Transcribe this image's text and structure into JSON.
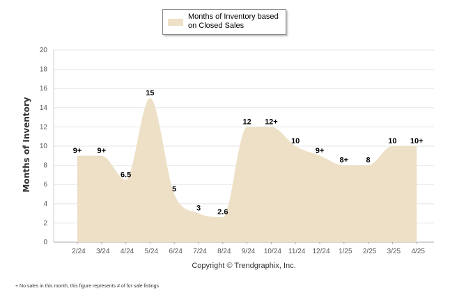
{
  "chart_data": {
    "type": "area",
    "categories": [
      "2/24",
      "3/24",
      "4/24",
      "5/24",
      "6/24",
      "7/24",
      "8/24",
      "9/24",
      "10/24",
      "11/24",
      "12/24",
      "1/25",
      "2/25",
      "3/25",
      "4/25"
    ],
    "series": [
      {
        "name": "Months of Inventory based on Closed Sales",
        "values": [
          9,
          9,
          6.5,
          15,
          5,
          3,
          2.6,
          12,
          12,
          10,
          9,
          8,
          8,
          10,
          10
        ],
        "labels": [
          "9+",
          "9+",
          "6.5",
          "15",
          "5",
          "3",
          "2.6",
          "12",
          "12+",
          "10",
          "9+",
          "8+",
          "8",
          "10",
          "10+"
        ]
      }
    ],
    "ylabel": "Months of Inventory",
    "ylim": [
      0,
      20
    ],
    "yticks": [
      0,
      2,
      4,
      6,
      8,
      10,
      12,
      14,
      16,
      18,
      20
    ],
    "grid": true,
    "legend": "top-center",
    "fill_color": "#ede0c6",
    "copyright": "Copyright © Trendgraphix, Inc.",
    "footnote": "+  No sales in this month, this figure represents # of for sale listings"
  }
}
